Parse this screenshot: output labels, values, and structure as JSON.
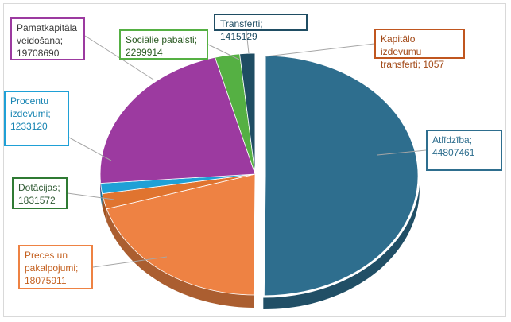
{
  "chart_data": {
    "type": "pie",
    "title": "",
    "slices": [
      {
        "label": "Atlīdzība",
        "value": 44807461,
        "color": "#2e6e8e",
        "text": "Atlīdzība;\n44807461"
      },
      {
        "label": "Preces un pakalpojumi",
        "value": 18075911,
        "color": "#ee8243",
        "text": "Preces un\npakalpojumi;\n18075911"
      },
      {
        "label": "Dotācijas",
        "value": 1831572,
        "color": "#e0742f",
        "text": "Dotācijas;\n1831572"
      },
      {
        "label": "Procentu izdevumi",
        "value": 1233120,
        "color": "#1fa0d6",
        "text": "Procentu\nizdevumi;\n1233120"
      },
      {
        "label": "Pamatkapitāla veidošana",
        "value": 19708690,
        "color": "#9c3aa0",
        "text": "Pamatkapitāla\nveidošana;\n19708690"
      },
      {
        "label": "Sociālie pabalsti",
        "value": 2299914,
        "color": "#55b043",
        "text": "Sociālie pabalsti;\n2299914"
      },
      {
        "label": "Transferti",
        "value": 1415129,
        "color": "#1f4d63",
        "text": "Transferti; 1415129"
      },
      {
        "label": "Kapitālo izdevumu transferti",
        "value": 1057,
        "color": "#c0561f",
        "text": "Kapitālo izdevumu\ntransferti; 1057"
      }
    ]
  }
}
